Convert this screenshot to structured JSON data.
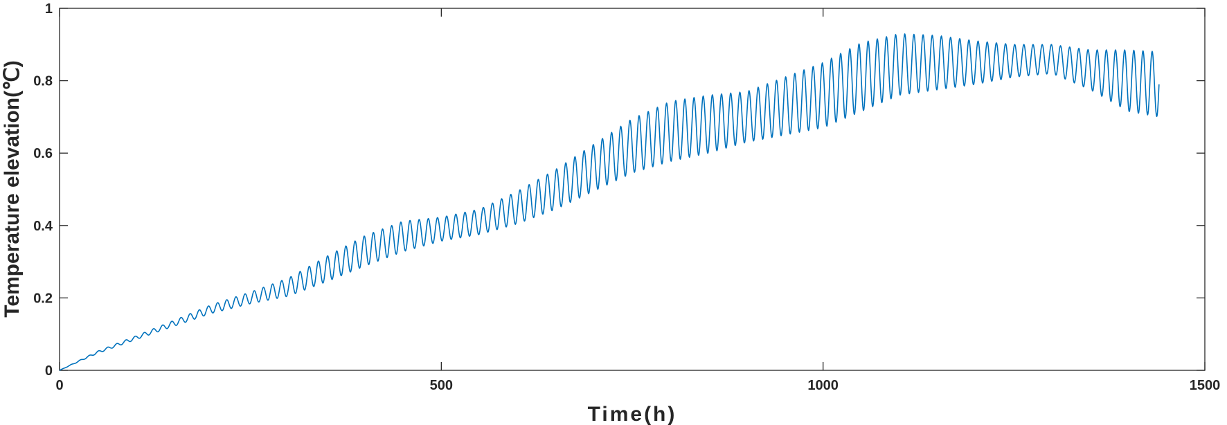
{
  "chart_data": {
    "type": "line",
    "title": "",
    "xlabel": "Time(h)",
    "ylabel": "Temperature elevation(℃)",
    "xlim": [
      0,
      1500
    ],
    "ylim": [
      0,
      1
    ],
    "xticks": [
      0,
      500,
      1000,
      1500
    ],
    "xtick_labels": [
      "0",
      "500",
      "1000",
      "1500"
    ],
    "yticks": [
      0,
      0.2,
      0.4,
      0.6,
      0.8,
      1
    ],
    "ytick_labels": [
      "0",
      "0.2",
      "0.4",
      "0.6",
      "0.8",
      "1"
    ],
    "grid": false,
    "legend": "none",
    "line_color": "#0072bd",
    "period_h": 12,
    "series": [
      {
        "x": [
          0,
          50,
          100,
          150,
          200,
          250,
          300,
          350,
          400,
          450,
          500,
          550,
          600,
          650,
          700,
          750,
          800,
          850,
          900,
          950,
          1000,
          1050,
          1100,
          1150,
          1200,
          1250,
          1300,
          1350,
          1400,
          1440
        ],
        "mean": [
          0,
          0.05,
          0.09,
          0.13,
          0.17,
          0.2,
          0.23,
          0.28,
          0.33,
          0.37,
          0.39,
          0.41,
          0.45,
          0.5,
          0.56,
          0.62,
          0.66,
          0.68,
          0.7,
          0.73,
          0.76,
          0.81,
          0.845,
          0.85,
          0.85,
          0.855,
          0.86,
          0.83,
          0.8,
          0.79
        ],
        "amplitude": [
          0,
          0.003,
          0.005,
          0.008,
          0.012,
          0.016,
          0.025,
          0.035,
          0.042,
          0.042,
          0.033,
          0.035,
          0.045,
          0.055,
          0.065,
          0.075,
          0.083,
          0.08,
          0.07,
          0.08,
          0.09,
          0.095,
          0.085,
          0.075,
          0.06,
          0.045,
          0.04,
          0.055,
          0.085,
          0.09
        ]
      }
    ]
  }
}
